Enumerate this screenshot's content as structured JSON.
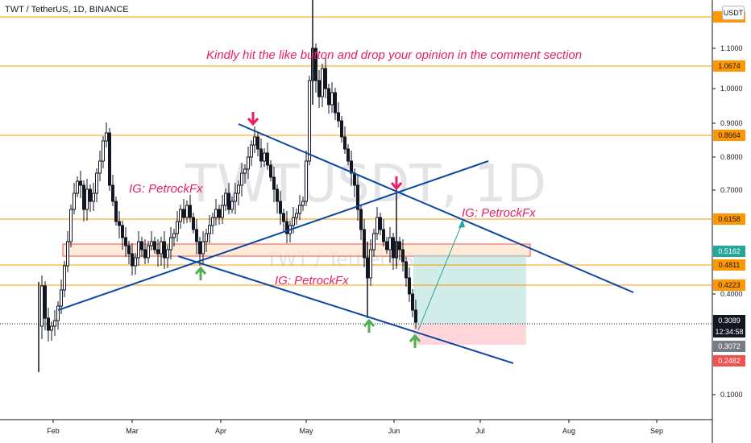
{
  "header": {
    "symbol_line": "TWT / TetherUS, 1D, BINANCE"
  },
  "currency_button": "USDT",
  "watermark": {
    "big": "TWTUSDT, 1D",
    "small": "TWT / TetherUS"
  },
  "colors": {
    "up": "#26a69a",
    "down": "#ef5350",
    "candle": "#131722",
    "level": "#ff9800",
    "trend": "#0d47a1",
    "annotation": "#e91e63",
    "arrow_up": "#4caf50"
  },
  "annotations": {
    "headline": "Kindly hit the like button and drop your opinion in the comment section",
    "ig_1": "IG: PetrockFx",
    "ig_2": "IG: PetrockFx",
    "ig_3": "IG: PetrockFx"
  },
  "chart_data": {
    "type": "candlestick",
    "x_ticks": [
      "Feb",
      "Mar",
      "Apr",
      "May",
      "Jun",
      "Jul",
      "Aug",
      "Sep"
    ],
    "y_ticks": [
      "1.1000",
      "1.0000",
      "0.9000",
      "0.8000",
      "0.7000",
      "0.4000",
      "0.1000"
    ],
    "horizontal_levels": [
      1.2,
      1.0674,
      0.8664,
      0.6158,
      0.4811,
      0.4223
    ],
    "price_tags": [
      {
        "label": "1.2",
        "bg": "#ff9800",
        "fg": "#131722"
      },
      {
        "label": "1.0674",
        "bg": "#ff9800",
        "fg": "#131722"
      },
      {
        "label": "0.8664",
        "bg": "#ff9800",
        "fg": "#131722"
      },
      {
        "label": "0.6158",
        "bg": "#ff9800",
        "fg": "#131722"
      },
      {
        "label": "0.5162",
        "bg": "#26a69a",
        "fg": "#ffffff"
      },
      {
        "label": "0.4811",
        "bg": "#ff9800",
        "fg": "#131722"
      },
      {
        "label": "0.4223",
        "bg": "#ff9800",
        "fg": "#131722"
      },
      {
        "label": "0.3089",
        "bg": "#131722",
        "fg": "#ffffff"
      },
      {
        "label": "12:34:58",
        "bg": "#131722",
        "fg": "#ffffff"
      },
      {
        "label": "0.3072",
        "bg": "#787b86",
        "fg": "#ffffff"
      },
      {
        "label": "0.2482",
        "bg": "#ef5350",
        "fg": "#ffffff"
      }
    ],
    "current_price": 0.3089,
    "trade_box": {
      "entry": 0.3089,
      "target": 0.5162,
      "stop": 0.2482
    },
    "resistance_zone": [
      0.5162,
      0.542
    ]
  }
}
